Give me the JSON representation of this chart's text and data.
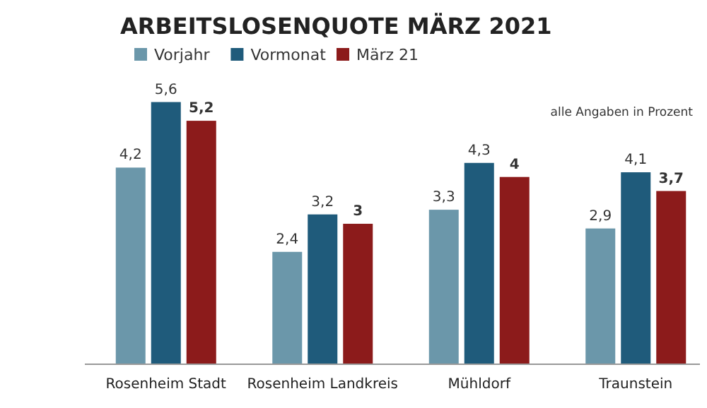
{
  "chart_data": {
    "type": "bar",
    "title": "ARBEITSLOSENQUOTE  MÄRZ 2021",
    "categories": [
      "Rosenheim Stadt",
      "Rosenheim Landkreis",
      "Mühldorf",
      "Traunstein"
    ],
    "series": [
      {
        "name": "Vorjahr",
        "color": "#6b97aa",
        "values": [
          4.2,
          2.4,
          3.3,
          2.9
        ],
        "value_labels": [
          "4,2",
          "2,4",
          "3,3",
          "2,9"
        ]
      },
      {
        "name": "Vormonat",
        "color": "#1f5b7b",
        "values": [
          5.6,
          3.2,
          4.3,
          4.1
        ],
        "value_labels": [
          "5,6",
          "3,2",
          "4,3",
          "4,1"
        ]
      },
      {
        "name": "März 21",
        "color": "#8c1b1b",
        "values": [
          5.2,
          3,
          4,
          3.7
        ],
        "value_labels": [
          "5,2",
          "3",
          "4",
          "3,7"
        ]
      }
    ],
    "legend": "top left",
    "annotations": [
      "alle Angaben in Prozent"
    ]
  }
}
